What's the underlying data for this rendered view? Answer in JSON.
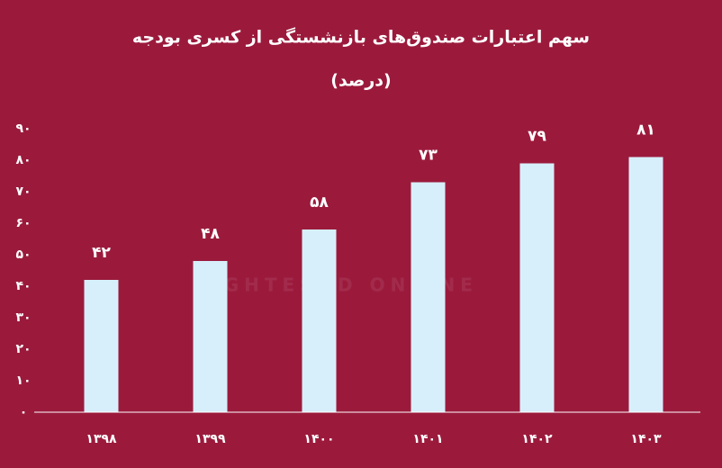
{
  "chart_data": {
    "type": "bar",
    "title": "سهم اعتبارات صندوق‌های بازنشستگی از کسری بودجه",
    "subtitle": "(درصد)",
    "watermark": "EGHTESAD ONLINE",
    "categories": [
      "۱۳۹۸",
      "۱۳۹۹",
      "۱۴۰۰",
      "۱۴۰۱",
      "۱۴۰۲",
      "۱۴۰۳"
    ],
    "values": [
      42,
      48,
      58,
      73,
      79,
      81
    ],
    "value_labels": [
      "۴۲",
      "۴۸",
      "۵۸",
      "۷۳",
      "۷۹",
      "۸۱"
    ],
    "color": "#d7effb",
    "ylim": [
      0,
      90
    ],
    "yticks": [
      {
        "value": 0,
        "label": "۰"
      },
      {
        "value": 10,
        "label": "۱۰"
      },
      {
        "value": 20,
        "label": "۲۰"
      },
      {
        "value": 30,
        "label": "۳۰"
      },
      {
        "value": 40,
        "label": "۴۰"
      },
      {
        "value": 50,
        "label": "۵۰"
      },
      {
        "value": 60,
        "label": "۶۰"
      },
      {
        "value": 70,
        "label": "۷۰"
      },
      {
        "value": 80,
        "label": "۸۰"
      },
      {
        "value": 90,
        "label": "۹۰"
      }
    ],
    "grid": false
  }
}
